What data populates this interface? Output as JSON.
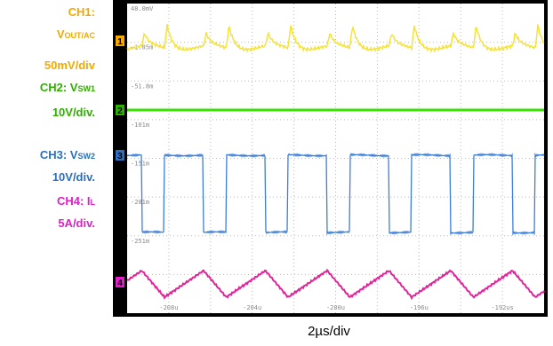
{
  "channels": [
    {
      "label": "CH1:",
      "signal": "V",
      "signal_sub": "OUT/AC",
      "scale": "50mV/div",
      "color": "#f2a900"
    },
    {
      "label": "CH2: V",
      "signal_sub": "SW1",
      "scale": "10V/div.",
      "color": "#2fae00"
    },
    {
      "label": "CH3: V",
      "signal_sub": "SW2",
      "scale": "10V/div.",
      "color": "#2b6fc0"
    },
    {
      "label": "CH4: I",
      "signal_sub": "L",
      "scale": "5A/div.",
      "color": "#e020c8"
    }
  ],
  "timebase": "2µs/div",
  "screen_level_labels": [
    "48.0mV",
    "-1.85m",
    "-51.8m",
    "-101m",
    "-151m",
    "-201m",
    "-251m"
  ],
  "screen_time_labels": [
    "-208u",
    "-204u",
    "-200u",
    "-196u",
    "-192us"
  ],
  "channel_markers": [
    "1",
    "2",
    "3",
    "4"
  ]
}
